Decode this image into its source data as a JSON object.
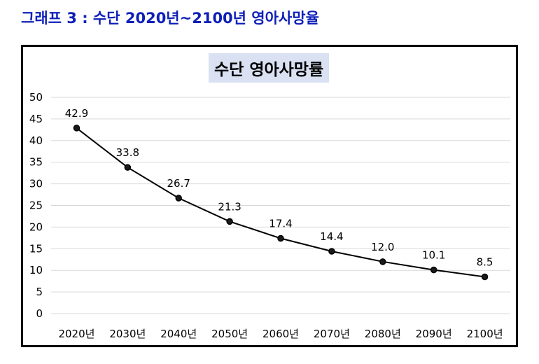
{
  "heading": "그래프 3 : 수단 2020년~2100년 영아사망율",
  "colors": {
    "heading": "#0d1fb8",
    "title_bg": "#d9e1f2",
    "line": "#000000",
    "grid": "#d9d9d9"
  },
  "chart_data": {
    "type": "line",
    "title": "수단 영아사망률",
    "categories": [
      "2020년",
      "2030년",
      "2040년",
      "2050년",
      "2060년",
      "2070년",
      "2080년",
      "2090년",
      "2100년"
    ],
    "series": [
      {
        "values": [
          42.9,
          33.8,
          26.7,
          21.3,
          17.4,
          14.4,
          12.0,
          10.1,
          8.5
        ],
        "labels": [
          "42.9",
          "33.8",
          "26.7",
          "21.3",
          "17.4",
          "14.4",
          "12.0",
          "10.1",
          "8.5"
        ]
      }
    ],
    "ylim": [
      0,
      50
    ],
    "yticks": [
      0,
      5,
      10,
      15,
      20,
      25,
      30,
      35,
      40,
      45,
      50
    ],
    "grid": true,
    "legend": "none"
  }
}
